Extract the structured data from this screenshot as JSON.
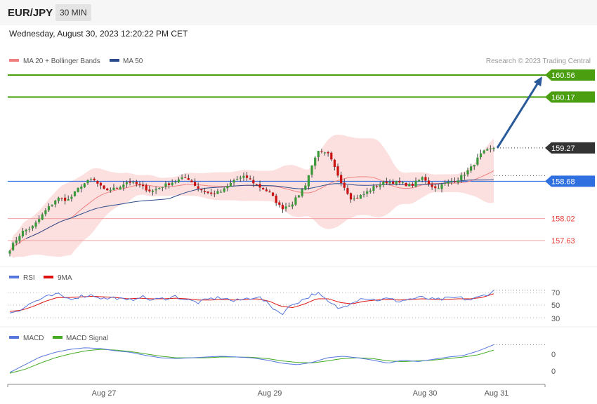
{
  "header": {
    "pair": "EUR/JPY",
    "timeframe": "30 MIN"
  },
  "timestamp": "Wednesday, August 30, 2023 12:20:22 PM CET",
  "chart_data": [
    {
      "type": "candlestick",
      "legend": [
        {
          "name": "MA 20 + Bollinger Bands",
          "color": "#f08080"
        },
        {
          "name": "MA 50",
          "color": "#2a4a8a"
        }
      ],
      "copyright": "Research © 2023 Trading Central",
      "ylim": [
        157.35,
        160.75
      ],
      "last_price": 159.27,
      "levels": [
        {
          "value": 160.56,
          "label": "160.56",
          "style": "resistance",
          "color": "#4a9e0f"
        },
        {
          "value": 160.17,
          "label": "160.17",
          "style": "resistance",
          "color": "#4a9e0f"
        },
        {
          "value": 159.27,
          "label": "159.27",
          "style": "last",
          "color": "#333333"
        },
        {
          "value": 158.68,
          "label": "158.68",
          "style": "pivot",
          "color": "#2f6fe0"
        },
        {
          "value": 158.02,
          "label": "158.02",
          "style": "support",
          "color": "#e53935"
        },
        {
          "value": 157.63,
          "label": "157.63",
          "style": "support",
          "color": "#e53935"
        }
      ],
      "arrow": {
        "from": 159.27,
        "to": 160.56,
        "color": "#2a5a9a"
      },
      "x_ticks": [
        "Aug 27",
        "Aug 29",
        "Aug 30",
        "Aug 31"
      ],
      "close_anchors": [
        157.48,
        157.78,
        157.88,
        158.15,
        158.38,
        158.35,
        158.6,
        158.72,
        158.52,
        158.55,
        158.68,
        158.6,
        158.5,
        158.6,
        158.68,
        158.75,
        158.55,
        158.45,
        158.5,
        158.7,
        158.76,
        158.6,
        158.48,
        158.2,
        158.3,
        158.6,
        159.2,
        159.15,
        158.7,
        158.35,
        158.45,
        158.6,
        158.68,
        158.65,
        158.6,
        158.75,
        158.55,
        158.65,
        158.72,
        158.9,
        159.18,
        159.27
      ]
    },
    {
      "type": "line",
      "name": "RSI",
      "series": [
        {
          "name": "RSI",
          "color": "#5577dd"
        },
        {
          "name": "9MA",
          "color": "#dd1111"
        }
      ],
      "y_ticks": [
        "70",
        "50",
        "30"
      ],
      "rsi_anchors": [
        38,
        44,
        55,
        62,
        67,
        60,
        64,
        66,
        60,
        62,
        56,
        64,
        58,
        60,
        64,
        58,
        54,
        60,
        62,
        56,
        60,
        64,
        50,
        36,
        52,
        60,
        70,
        54,
        44,
        56,
        62,
        58,
        60,
        56,
        60,
        62,
        58,
        60,
        62,
        58,
        64,
        72
      ],
      "ma_anchors": [
        40,
        42,
        48,
        56,
        62,
        62,
        63,
        64,
        63,
        62,
        60,
        61,
        60,
        60,
        61,
        60,
        58,
        58,
        59,
        58,
        59,
        60,
        56,
        48,
        46,
        52,
        60,
        60,
        54,
        52,
        56,
        58,
        59,
        58,
        59,
        60,
        59,
        59,
        60,
        60,
        62,
        68
      ]
    },
    {
      "type": "line",
      "name": "MACD",
      "series": [
        {
          "name": "MACD",
          "color": "#5577dd"
        },
        {
          "name": "MACD Signal",
          "color": "#44aa22"
        }
      ],
      "y_ticks": [
        "0",
        "0"
      ],
      "macd_anchors": [
        -0.5,
        0.0,
        0.5,
        0.8,
        1.0,
        1.1,
        1.05,
        0.9,
        0.8,
        0.6,
        0.45,
        0.4,
        0.45,
        0.5,
        0.55,
        0.5,
        0.45,
        0.3,
        0.1,
        0.0,
        0.15,
        0.45,
        0.55,
        0.45,
        0.3,
        0.1,
        0.3,
        0.2,
        0.35,
        0.5,
        0.6,
        0.9,
        1.3
      ],
      "signal_anchors": [
        -0.55,
        -0.3,
        0.1,
        0.45,
        0.7,
        0.9,
        1.0,
        0.95,
        0.85,
        0.7,
        0.55,
        0.45,
        0.45,
        0.45,
        0.5,
        0.5,
        0.48,
        0.4,
        0.25,
        0.15,
        0.12,
        0.25,
        0.4,
        0.45,
        0.4,
        0.25,
        0.2,
        0.25,
        0.3,
        0.4,
        0.5,
        0.65,
        0.95
      ]
    }
  ]
}
